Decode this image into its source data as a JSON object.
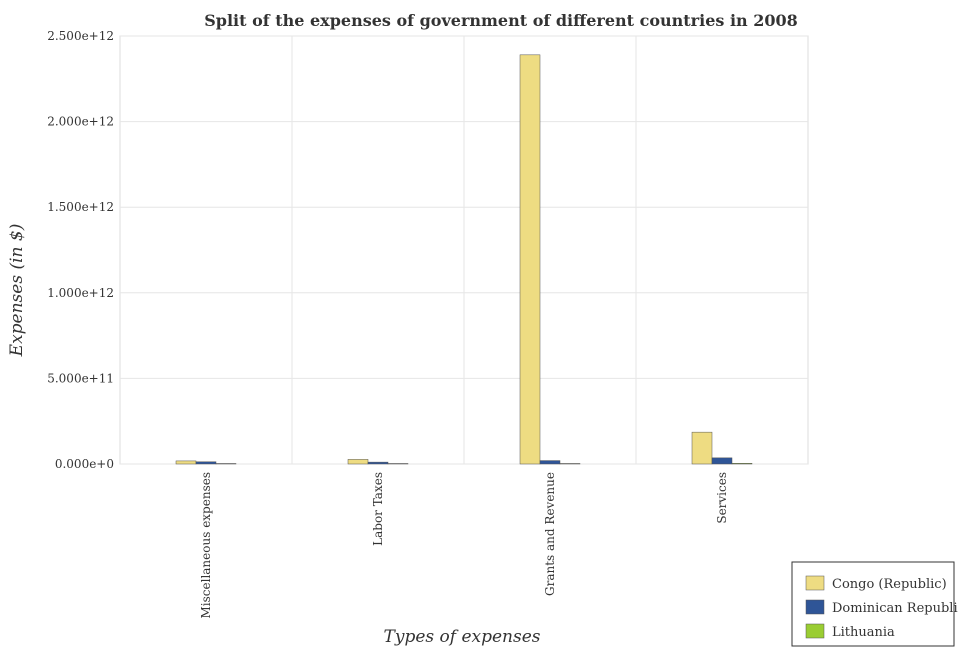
{
  "chart_data": {
    "type": "bar",
    "title": "Split of the expenses of government of different countries in 2008",
    "xlabel": "Types of expenses",
    "ylabel": "Expenses (in $)",
    "categories": [
      "Miscellaneous expenses",
      "Labor Taxes",
      "Grants and Revenue",
      "Services"
    ],
    "y_ticks": [
      "0.000e+0",
      "5.000e+11",
      "1.000e+12",
      "1.500e+12",
      "2.000e+12",
      "2.500e+12"
    ],
    "ylim": [
      0,
      2500000000000
    ],
    "grid": true,
    "legend_position": "bottom-right",
    "series": [
      {
        "name": "Congo (Republic)",
        "color": "#eedc82",
        "values": [
          18000000000,
          27000000000,
          2390000000000,
          186000000000
        ]
      },
      {
        "name": "Dominican Republic",
        "color": "#2f5597",
        "values": [
          13000000000,
          11000000000,
          20000000000,
          36000000000
        ]
      },
      {
        "name": "Lithuania",
        "color": "#9acd32",
        "values": [
          2000000000,
          300000000,
          3000000000,
          4000000000
        ]
      }
    ]
  }
}
